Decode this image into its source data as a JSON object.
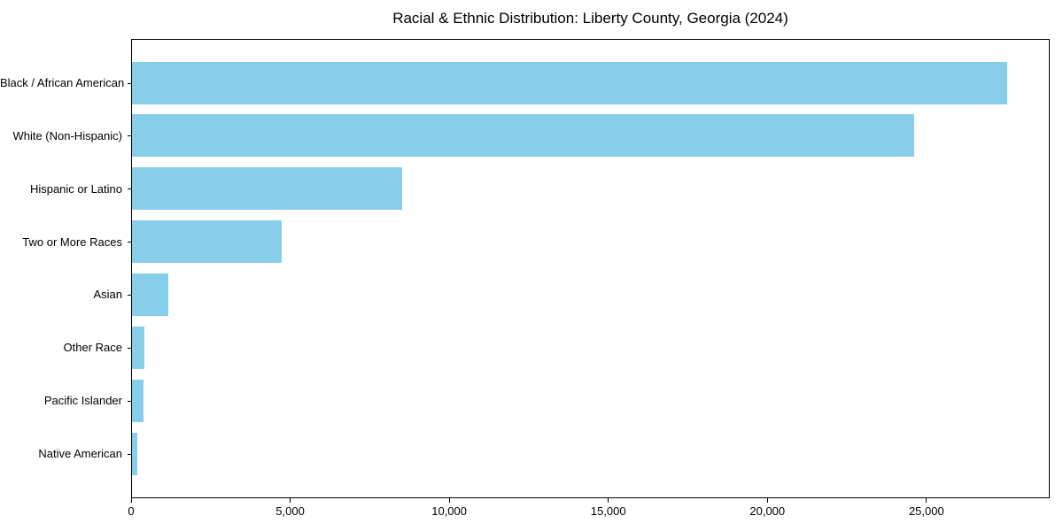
{
  "chart_data": {
    "type": "bar",
    "orientation": "horizontal",
    "title": "Racial & Ethnic Distribution: Liberty County, Georgia (2024)",
    "categories": [
      "Black / African American",
      "White (Non-Hispanic)",
      "Hispanic or Latino",
      "Two or More Races",
      "Asian",
      "Other Race",
      "Pacific Islander",
      "Native American"
    ],
    "values": [
      27500,
      24600,
      8500,
      4700,
      1150,
      400,
      370,
      165
    ],
    "xlabel": "",
    "ylabel": "",
    "xlim": [
      0,
      28875
    ],
    "x_ticks": [
      0,
      5000,
      10000,
      15000,
      20000,
      25000
    ],
    "x_tick_labels": [
      "0",
      "5,000",
      "10,000",
      "15,000",
      "20,000",
      "25,000"
    ],
    "bar_color": "#87CEEB",
    "frame_color": "#000000",
    "text_color": "#000000",
    "background_color": "#ffffff",
    "grid": false,
    "legend": null
  }
}
